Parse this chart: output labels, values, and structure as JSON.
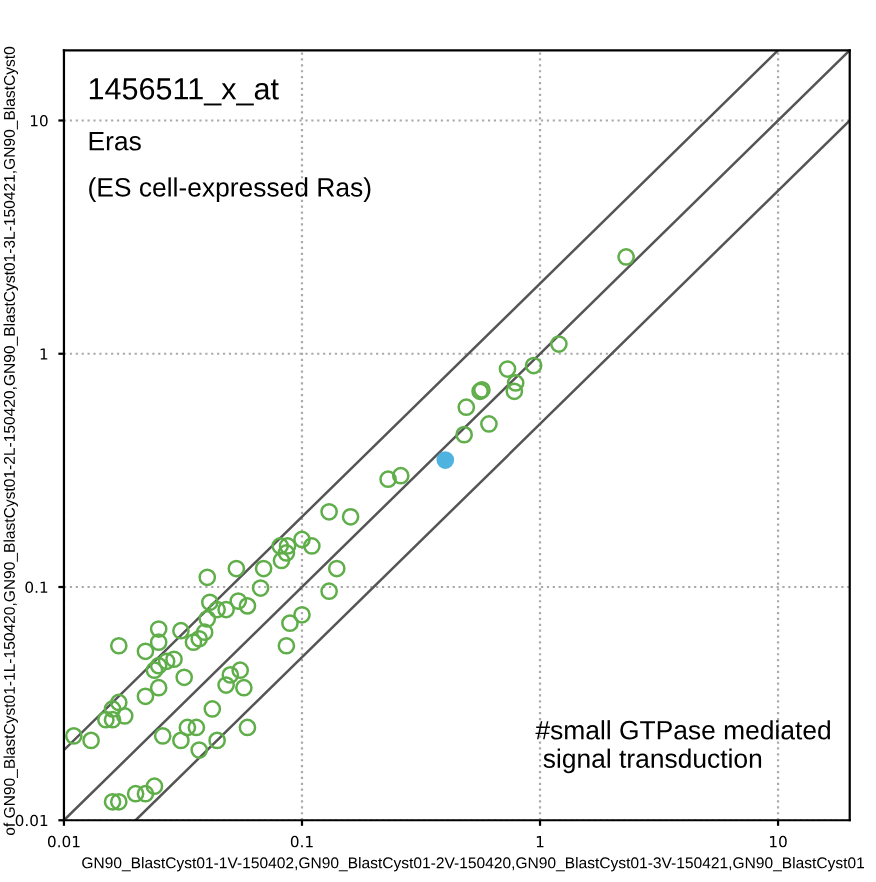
{
  "chart_data": {
    "type": "scatter",
    "xlabel": "GN90_BlastCyst01-1V-150402,GN90_BlastCyst01-2V-150420,GN90_BlastCyst01-3V-150421,GN90_BlastCyst01",
    "ylabel": "of GN90_BlastCyst01-1L-150420,GN90_BlastCyst01-2L-150420,GN90_BlastCyst01-3L-150421,GN90_BlastCyst0",
    "annotations": [
      "1456511_x_at",
      "Eras",
      "(ES cell-expressed Ras)",
      "#small GTPase mediated\n signal transduction"
    ],
    "log": "xy",
    "xlim": [
      0.01,
      20
    ],
    "ylim": [
      0.01,
      20
    ],
    "xticks": [
      0.01,
      0.1,
      1,
      10
    ],
    "yticks": [
      0.01,
      0.1,
      1,
      10
    ],
    "grid": true,
    "series": [
      {
        "color": "#5fae4a",
        "marker": "circle",
        "x": [
          0.011,
          0.013,
          0.015,
          0.016,
          0.016,
          0.017,
          0.018,
          0.017,
          0.022,
          0.022,
          0.025,
          0.024,
          0.025,
          0.027,
          0.029,
          0.025,
          0.025,
          0.031,
          0.032,
          0.035,
          0.037,
          0.039,
          0.04,
          0.041,
          0.04,
          0.044,
          0.048,
          0.053,
          0.054,
          0.059,
          0.067,
          0.069,
          0.082,
          0.081,
          0.087,
          0.086,
          0.1,
          0.11,
          0.13,
          0.16,
          0.14,
          0.13,
          0.1,
          0.089,
          0.086,
          0.05,
          0.055,
          0.048,
          0.057,
          0.042,
          0.059,
          0.033,
          0.036,
          0.031,
          0.026,
          0.044,
          0.037,
          0.024,
          0.022,
          0.02,
          0.017,
          0.016,
          0.23,
          0.26,
          2.3,
          1.2,
          0.73,
          0.94,
          0.57,
          0.56,
          0.79,
          0.78,
          0.49,
          0.61,
          0.48
        ],
        "values": [
          0.023,
          0.022,
          0.027,
          0.027,
          0.03,
          0.032,
          0.028,
          0.056,
          0.053,
          0.034,
          0.037,
          0.044,
          0.046,
          0.048,
          0.049,
          0.066,
          0.058,
          0.065,
          0.041,
          0.058,
          0.06,
          0.064,
          0.073,
          0.086,
          0.11,
          0.08,
          0.08,
          0.12,
          0.087,
          0.083,
          0.099,
          0.12,
          0.13,
          0.15,
          0.15,
          0.14,
          0.16,
          0.15,
          0.21,
          0.2,
          0.12,
          0.096,
          0.076,
          0.07,
          0.056,
          0.042,
          0.044,
          0.038,
          0.037,
          0.03,
          0.025,
          0.025,
          0.025,
          0.022,
          0.023,
          0.022,
          0.02,
          0.014,
          0.013,
          0.013,
          0.012,
          0.012,
          0.29,
          0.3,
          2.6,
          1.1,
          0.86,
          0.89,
          0.7,
          0.69,
          0.75,
          0.69,
          0.59,
          0.5,
          0.45
        ]
      },
      {
        "color": "#4fb3e0",
        "marker": "circle",
        "x": [
          0.4
        ],
        "values": [
          0.35
        ]
      },
      {
        "type": "line",
        "color": "#555555",
        "x": [
          0.01,
          10
        ],
        "values": [
          0.02,
          20
        ]
      },
      {
        "type": "line",
        "color": "#555555",
        "x": [
          0.01,
          20
        ],
        "values": [
          0.01,
          20
        ]
      },
      {
        "type": "line",
        "color": "#555555",
        "x": [
          0.02,
          20
        ],
        "values": [
          0.01,
          10
        ]
      }
    ]
  }
}
